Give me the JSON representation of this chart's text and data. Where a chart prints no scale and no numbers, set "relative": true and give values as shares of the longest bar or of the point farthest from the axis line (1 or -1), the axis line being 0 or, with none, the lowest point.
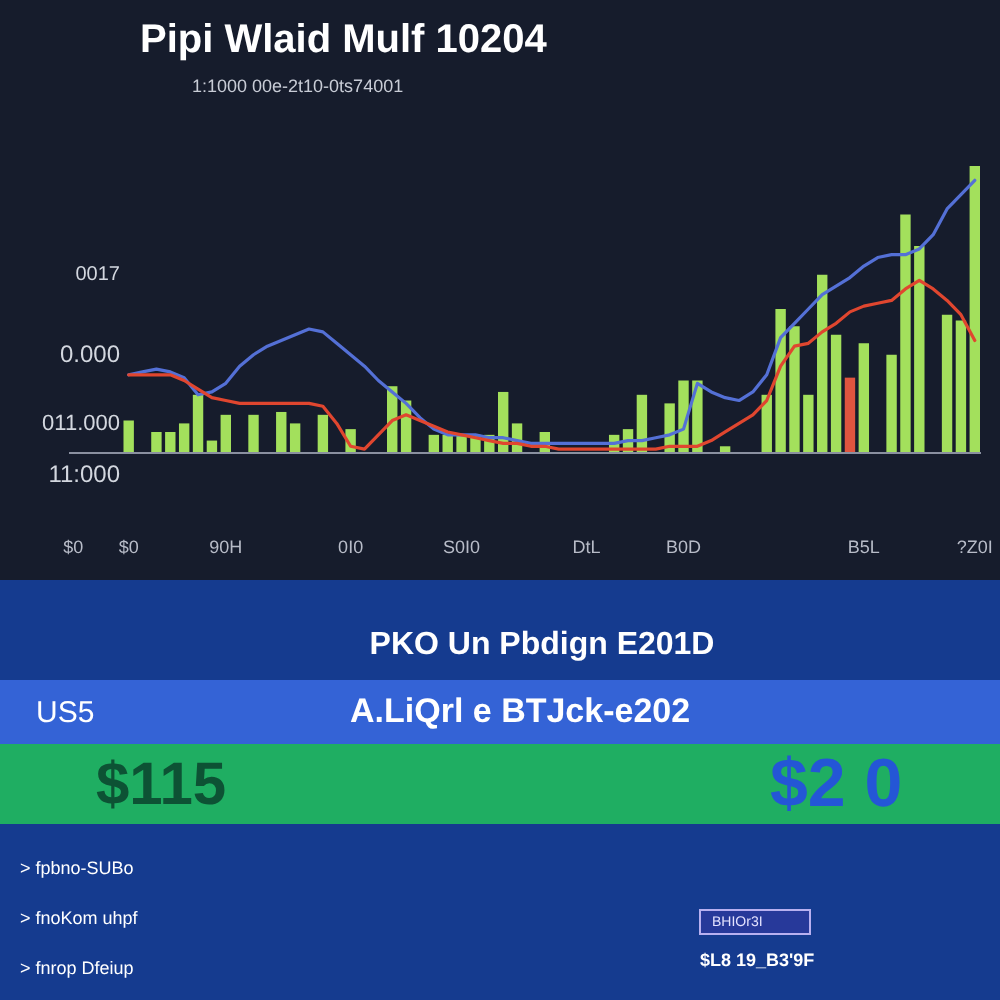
{
  "chart_data": [
    {
      "type": "bar",
      "title": "Pipi Wlaid Mulf 10204",
      "subtitle": "1:1000 00e-2t10-0ts74001",
      "relative": true,
      "categories": [
        "$0",
        null,
        null,
        null,
        "$0",
        null,
        null,
        null,
        null,
        null,
        null,
        "90H",
        null,
        null,
        null,
        null,
        null,
        null,
        null,
        null,
        "0I0",
        null,
        null,
        null,
        null,
        null,
        null,
        null,
        "S0I0",
        null,
        null,
        null,
        null,
        null,
        null,
        null,
        null,
        "DtL",
        null,
        null,
        null,
        null,
        null,
        null,
        "B0D",
        null,
        null,
        null,
        null,
        null,
        null,
        null,
        null,
        null,
        null,
        null,
        null,
        "B5L",
        null,
        null,
        null,
        null,
        null,
        null,
        null,
        "?Z0I"
      ],
      "series": [
        {
          "type": "bar",
          "values": [
            null,
            null,
            null,
            null,
            0.11,
            null,
            0.07,
            0.07,
            0.1,
            0.2,
            0.04,
            0.13,
            null,
            0.13,
            null,
            0.14,
            0.1,
            null,
            0.13,
            null,
            0.08,
            null,
            null,
            0.23,
            0.18,
            null,
            0.06,
            0.06,
            0.06,
            0.06,
            0.06,
            0.21,
            0.1,
            null,
            0.07,
            null,
            null,
            null,
            null,
            0.06,
            0.08,
            0.2,
            null,
            0.17,
            0.25,
            0.25,
            null,
            0.02,
            null,
            null,
            0.2,
            0.5,
            0.44,
            0.2,
            0.62,
            0.41,
            0.26,
            0.38,
            null,
            0.34,
            0.83,
            0.72,
            null,
            0.48,
            0.46,
            1.0
          ],
          "colors": [
            null,
            null,
            null,
            null,
            "#a3e05c",
            null,
            "#a3e05c",
            "#a3e05c",
            "#a3e05c",
            "#a3e05c",
            "#a3e05c",
            "#a3e05c",
            null,
            "#a3e05c",
            null,
            "#a3e05c",
            "#a3e05c",
            null,
            "#a3e05c",
            null,
            "#a3e05c",
            null,
            null,
            "#a3e05c",
            "#a3e05c",
            null,
            "#a3e05c",
            "#a3e05c",
            "#a3e05c",
            "#a3e05c",
            "#a3e05c",
            "#a3e05c",
            "#a3e05c",
            null,
            "#a3e05c",
            null,
            null,
            null,
            null,
            "#a3e05c",
            "#a3e05c",
            "#a3e05c",
            null,
            "#a3e05c",
            "#a3e05c",
            "#a3e05c",
            null,
            "#a3e05c",
            null,
            null,
            "#a3e05c",
            "#a3e05c",
            "#a3e05c",
            "#a3e05c",
            "#a3e05c",
            "#a3e05c",
            "#e0553f",
            "#a3e05c",
            null,
            "#a3e05c",
            "#a3e05c",
            "#a3e05c",
            null,
            "#a3e05c",
            "#a3e05c",
            "#a3e05c"
          ]
        },
        {
          "type": "line",
          "color": "#5470d6",
          "values": [
            null,
            null,
            null,
            null,
            0.27,
            0.28,
            0.29,
            0.28,
            0.26,
            0.2,
            0.21,
            0.24,
            0.3,
            0.34,
            0.37,
            0.39,
            0.41,
            0.43,
            0.42,
            0.38,
            0.34,
            0.3,
            0.25,
            0.21,
            0.17,
            0.12,
            0.08,
            0.06,
            0.06,
            0.06,
            0.05,
            0.05,
            0.04,
            0.03,
            0.03,
            0.03,
            0.03,
            0.03,
            0.03,
            0.03,
            0.04,
            0.04,
            0.05,
            0.06,
            0.08,
            0.24,
            0.21,
            0.19,
            0.18,
            0.21,
            0.27,
            0.4,
            0.45,
            0.5,
            0.55,
            0.58,
            0.61,
            0.65,
            0.68,
            0.69,
            0.69,
            0.71,
            0.76,
            0.85,
            0.9,
            0.95
          ]
        },
        {
          "type": "line",
          "color": "#e0462f",
          "values": [
            null,
            null,
            null,
            null,
            0.27,
            0.27,
            0.27,
            0.27,
            0.25,
            0.22,
            0.19,
            0.18,
            0.17,
            0.17,
            0.17,
            0.17,
            0.17,
            0.17,
            0.16,
            0.1,
            0.02,
            0.01,
            0.06,
            0.11,
            0.13,
            0.11,
            0.09,
            0.07,
            0.06,
            0.05,
            0.04,
            0.03,
            0.03,
            0.02,
            0.02,
            0.01,
            0.01,
            0.01,
            0.01,
            0.01,
            0.01,
            0.01,
            0.01,
            0.02,
            0.02,
            0.02,
            0.04,
            0.07,
            0.1,
            0.13,
            0.18,
            0.3,
            0.37,
            0.38,
            0.42,
            0.45,
            0.49,
            0.51,
            0.52,
            0.53,
            0.57,
            0.6,
            0.57,
            0.53,
            0.48,
            0.39
          ]
        }
      ],
      "annotations": [
        "0017",
        "0.000",
        "011.000",
        "11:000"
      ]
    },
    {
      "type": "other",
      "title": "PKO Un Pbdign E201D",
      "annotations": [
        "US5",
        "A.LiQrl e BTJck-e202",
        "$115",
        "$2 0",
        "> fpbno-SUBo",
        "> fnoKom uhpf",
        "> fnrop Dfeiup",
        "BHIOr3I",
        "$L8 19_B3'9F"
      ]
    }
  ]
}
